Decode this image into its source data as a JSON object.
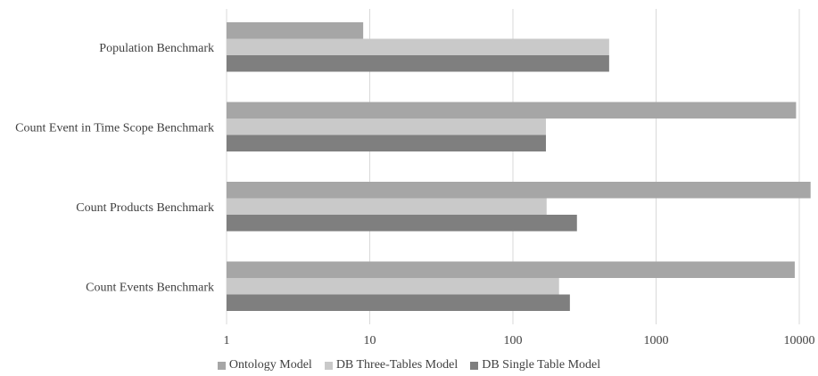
{
  "chart_data": {
    "type": "bar",
    "orientation": "horizontal",
    "scale": "log",
    "categories": [
      "Population Benchmark",
      "Count Event in Time Scope Benchmark",
      "Count Products Benchmark",
      "Count Events Benchmark"
    ],
    "series": [
      {
        "name": "Ontology Model",
        "color": "#a6a6a6",
        "values": [
          9,
          9500,
          12000,
          9300
        ]
      },
      {
        "name": "DB Three-Tables Model",
        "color": "#c9c9c9",
        "values": [
          470,
          170,
          172,
          210
        ]
      },
      {
        "name": "DB Single Table Model",
        "color": "#7f7f7f",
        "values": [
          470,
          170,
          280,
          250
        ]
      }
    ],
    "x_ticks": [
      "1",
      "10",
      "100",
      "1000",
      "10000"
    ],
    "xlim": [
      1,
      12000
    ],
    "grid": true,
    "legend_position": "bottom"
  }
}
